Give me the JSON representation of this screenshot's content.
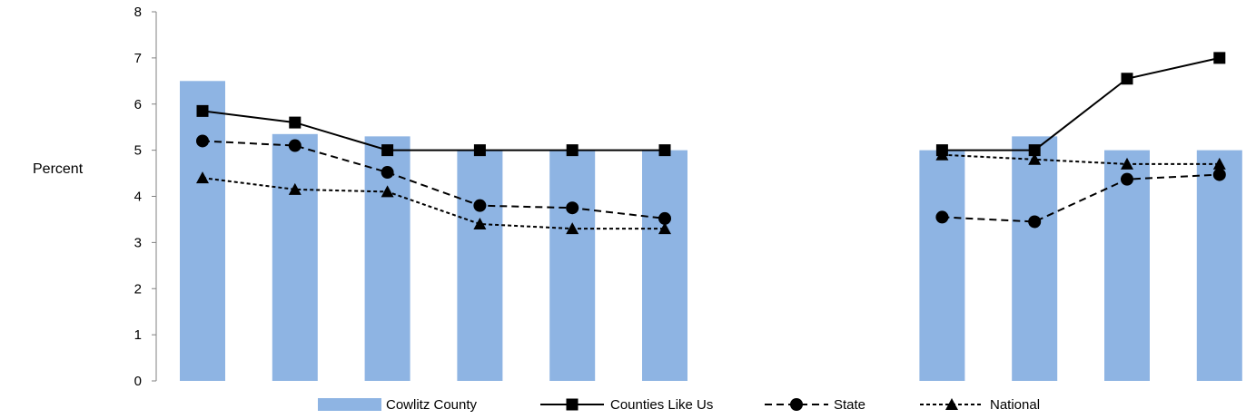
{
  "chart_data": {
    "type": "bar",
    "ylabel": "Percent",
    "ylim": [
      0,
      8
    ],
    "yticks": [
      0,
      1,
      2,
      3,
      4,
      5,
      6,
      7,
      8
    ],
    "grid": false,
    "legend_position": "bottom",
    "categories": [
      "",
      "",
      "",
      "",
      "",
      "",
      "",
      "",
      "",
      "",
      "",
      ""
    ],
    "series": [
      {
        "name": "Cowlitz County",
        "kind": "bar",
        "color": "#8eb4e3",
        "values": [
          6.5,
          5.35,
          5.3,
          5.0,
          5.0,
          5.0,
          null,
          null,
          5.0,
          5.3,
          5.0,
          5.0
        ]
      },
      {
        "name": "Counties Like Us",
        "kind": "line",
        "style": "solid",
        "marker": "square",
        "color": "#000000",
        "values": [
          5.85,
          5.6,
          5.0,
          5.0,
          5.0,
          5.0,
          null,
          null,
          5.0,
          5.0,
          6.55,
          7.0
        ]
      },
      {
        "name": "State",
        "kind": "line",
        "style": "dashed",
        "marker": "circle",
        "color": "#000000",
        "values": [
          5.2,
          5.1,
          4.52,
          3.8,
          3.75,
          3.52,
          null,
          null,
          3.55,
          3.45,
          4.37,
          4.47
        ]
      },
      {
        "name": "National",
        "kind": "line",
        "style": "dotted",
        "marker": "triangle",
        "color": "#000000",
        "values": [
          4.4,
          4.15,
          4.1,
          3.4,
          3.3,
          3.3,
          null,
          null,
          4.9,
          4.8,
          4.7,
          4.7
        ]
      }
    ]
  }
}
